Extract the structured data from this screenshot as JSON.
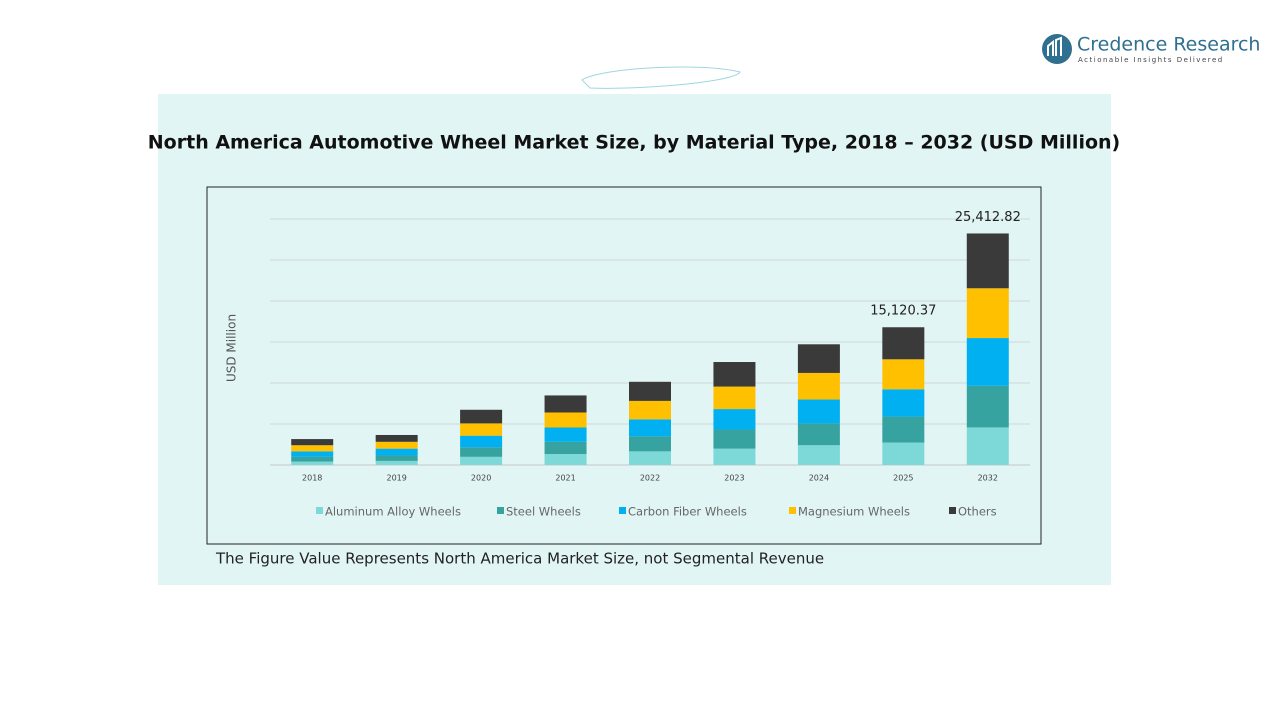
{
  "logo": {
    "name": "Credence Research",
    "tagline": "Actionable Insights Delivered"
  },
  "chart_data": {
    "type": "stacked-bar",
    "title": "North America Automotive Wheel Market Size, by Material Type, 2018 – 2032 (USD Million)",
    "y_label": "USD Million",
    "categories": [
      "2018",
      "2019",
      "2020",
      "2021",
      "2022",
      "2023",
      "2024",
      "2025",
      "2032"
    ],
    "series": [
      {
        "name": "Aluminum Alloy Wheels",
        "color": "#7dd8d8",
        "values": [
          374,
          449,
          898,
          1198,
          1497,
          1796,
          2171,
          2470,
          4124
        ]
      },
      {
        "name": "Steel Wheels",
        "color": "#36a3a0",
        "values": [
          524,
          599,
          1048,
          1347,
          1647,
          2096,
          2395,
          2844,
          4570
        ]
      },
      {
        "name": "Carbon Fiber Wheels",
        "color": "#00b0f0",
        "values": [
          599,
          749,
          1272,
          1572,
          1871,
          2246,
          2620,
          2994,
          5239
        ]
      },
      {
        "name": "Magnesium Wheels",
        "color": "#ffc000",
        "values": [
          674,
          749,
          1347,
          1647,
          2021,
          2470,
          2919,
          3293,
          5462
        ]
      },
      {
        "name": "Others",
        "color": "#3a3a3a",
        "values": [
          674,
          749,
          1497,
          1871,
          2096,
          2695,
          3144,
          3518,
          6017
        ]
      }
    ],
    "total_labels": [
      null,
      null,
      null,
      null,
      null,
      null,
      null,
      "15,120.37",
      "25,412.82"
    ],
    "ylim": [
      0,
      27000
    ],
    "grid": true,
    "footnote": "The Figure Value Represents North America Market Size, not Segmental Revenue"
  }
}
